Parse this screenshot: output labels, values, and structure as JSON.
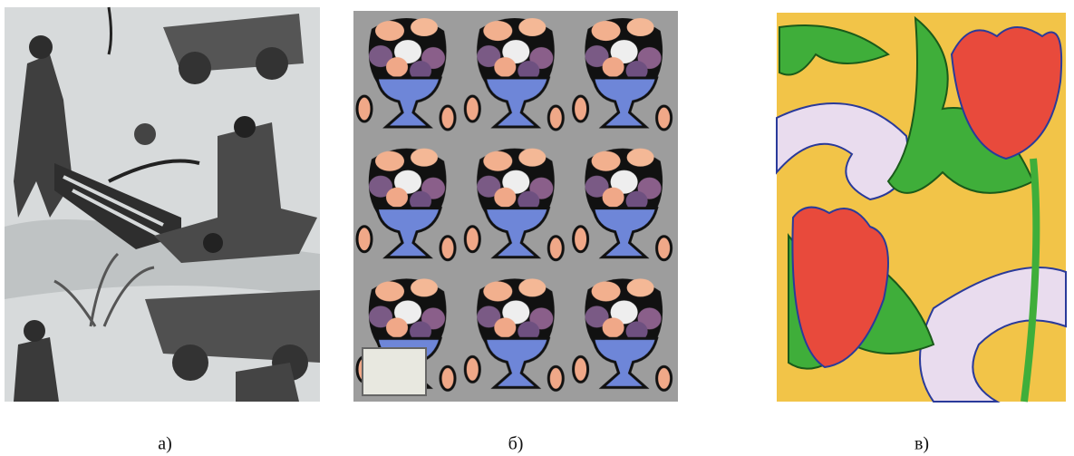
{
  "panels": [
    {
      "caption": "а)"
    },
    {
      "caption": "б)"
    },
    {
      "caption": "в)"
    }
  ]
}
